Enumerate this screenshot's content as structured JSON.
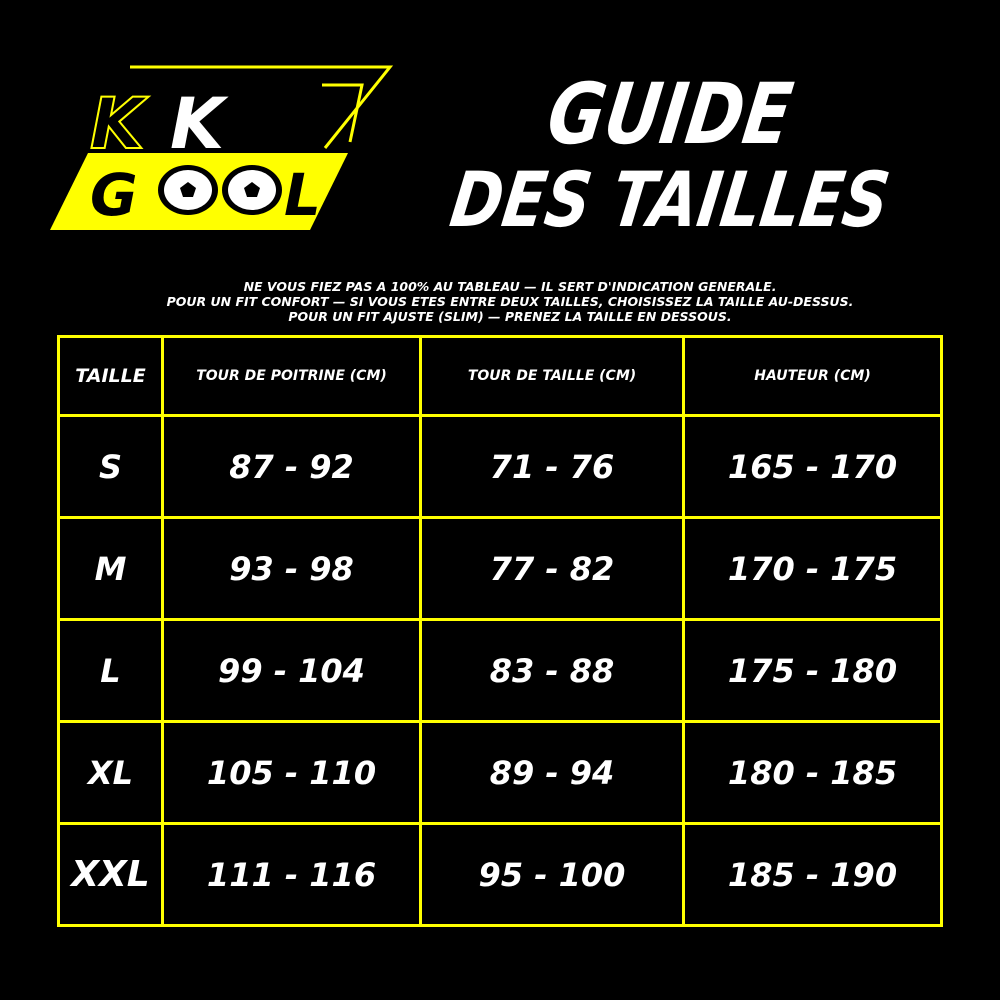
{
  "logo": {
    "line1": "KK",
    "line2": "GOOL",
    "colors": {
      "accent": "#ffff00",
      "text": "#ffffff",
      "background": "#000000"
    }
  },
  "title": {
    "line1": "GUIDE",
    "line2": "DES TAILLES"
  },
  "notes": [
    "NE VOUS FIEZ PAS A 100% AU TABLEAU — IL SERT D'INDICATION GENERALE.",
    "POUR UN FIT CONFORT — SI VOUS ETES ENTRE DEUX TAILLES, CHOISISSEZ LA TAILLE AU-DESSUS.",
    "POUR UN FIT AJUSTE (SLIM) — PRENEZ LA TAILLE EN DESSOUS."
  ],
  "table": {
    "headers": [
      "TAILLE",
      "TOUR DE POITRINE (CM)",
      "TOUR DE TAILLE (CM)",
      "HAUTEUR (CM)"
    ],
    "rows": [
      [
        "S",
        "87 - 92",
        "71 - 76",
        "165 - 170"
      ],
      [
        "M",
        "93 - 98",
        "77 - 82",
        "170 - 175"
      ],
      [
        "L",
        "99 - 104",
        "83 - 88",
        "175 - 180"
      ],
      [
        "XL",
        "105 - 110",
        "89 - 94",
        "180 - 185"
      ],
      [
        "XXL",
        "111 - 116",
        "95 - 100",
        "185 - 190"
      ]
    ]
  }
}
